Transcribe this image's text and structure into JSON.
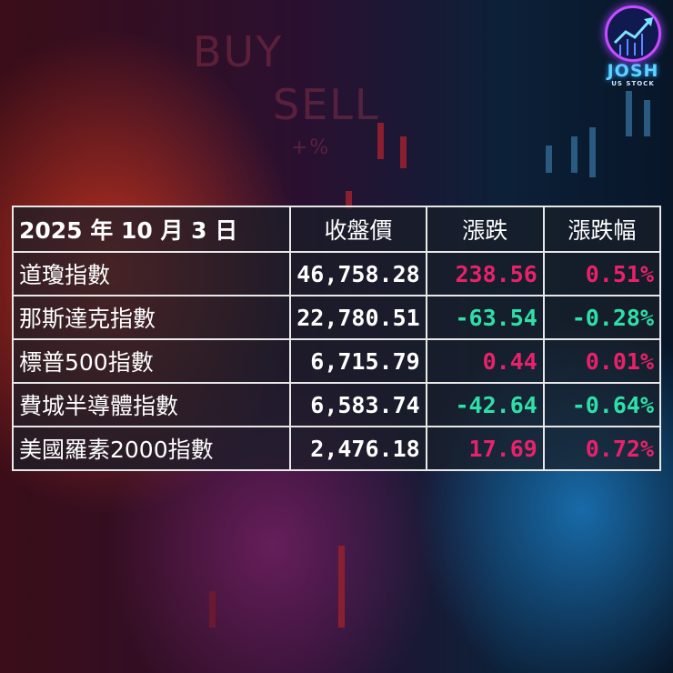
{
  "background_text": {
    "buy": "BUY",
    "sell": "SELL",
    "pct": "+%"
  },
  "logo": {
    "name": "JOSH",
    "sub": "US STOCK",
    "mark": "®"
  },
  "colors": {
    "up": "#e8226a",
    "down": "#2ee0a8"
  },
  "table": {
    "headers": [
      "2025 年 10 月 3 日",
      "收盤價",
      "漲跌",
      "漲跌幅"
    ],
    "rows": [
      {
        "name": "道瓊指數",
        "close": "46,758.28",
        "change": "238.56",
        "pct": "0.51%",
        "dir": "up"
      },
      {
        "name": "那斯達克指數",
        "close": "22,780.51",
        "change": "-63.54",
        "pct": "-0.28%",
        "dir": "down"
      },
      {
        "name": "標普500指數",
        "close": "6,715.79",
        "change": "0.44",
        "pct": "0.01%",
        "dir": "up"
      },
      {
        "name": "費城半導體指數",
        "close": "6,583.74",
        "change": "-42.64",
        "pct": "-0.64%",
        "dir": "down"
      },
      {
        "name": "美國羅素2000指數",
        "close": "2,476.18",
        "change": "17.69",
        "pct": "0.72%",
        "dir": "up"
      }
    ]
  }
}
